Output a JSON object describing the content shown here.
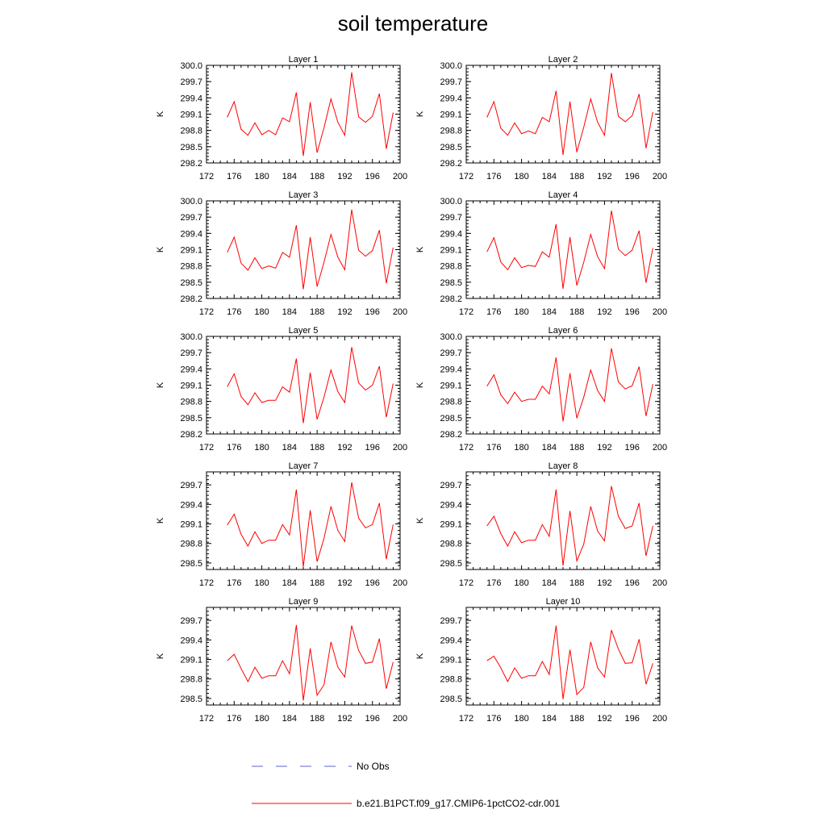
{
  "title": "soil temperature",
  "legend": {
    "no_obs_label": "No Obs",
    "no_obs_color": "#5a66c8",
    "model_label": "b.e21.B1PCT.f09_g17.CMIP6-1pctCO2-cdr.001",
    "model_color": "#ff0000"
  },
  "chart_data": [
    {
      "type": "line",
      "title": "Layer 1",
      "ylabel": "K",
      "xlim": [
        172,
        200
      ],
      "ylim": [
        298.2,
        300.0
      ],
      "xticks": [
        172,
        176,
        180,
        184,
        188,
        192,
        196,
        200
      ],
      "yticks": [
        298.2,
        298.5,
        298.8,
        299.1,
        299.4,
        299.7,
        300.0
      ],
      "x": [
        175,
        176,
        177,
        178,
        179,
        180,
        181,
        182,
        183,
        184,
        185,
        186,
        187,
        188,
        189,
        190,
        191,
        192,
        193,
        194,
        195,
        196,
        197,
        198,
        199
      ],
      "series": [
        {
          "values": [
            299.04,
            299.33,
            298.82,
            298.71,
            298.94,
            298.72,
            298.8,
            298.72,
            299.03,
            298.96,
            299.5,
            298.33,
            299.32,
            298.39,
            298.85,
            299.38,
            298.95,
            298.71,
            299.87,
            299.05,
            298.95,
            299.06,
            299.48,
            298.46,
            299.13
          ]
        }
      ]
    },
    {
      "type": "line",
      "title": "Layer 2",
      "ylabel": "K",
      "xlim": [
        172,
        200
      ],
      "ylim": [
        298.2,
        300.0
      ],
      "xticks": [
        172,
        176,
        180,
        184,
        188,
        192,
        196,
        200
      ],
      "yticks": [
        298.2,
        298.5,
        298.8,
        299.1,
        299.4,
        299.7,
        300.0
      ],
      "x": [
        175,
        176,
        177,
        178,
        179,
        180,
        181,
        182,
        183,
        184,
        185,
        186,
        187,
        188,
        189,
        190,
        191,
        192,
        193,
        194,
        195,
        196,
        197,
        198,
        199
      ],
      "series": [
        {
          "values": [
            299.04,
            299.33,
            298.84,
            298.71,
            298.94,
            298.74,
            298.79,
            298.74,
            299.04,
            298.96,
            299.53,
            298.35,
            299.33,
            298.4,
            298.86,
            299.38,
            298.95,
            298.71,
            299.86,
            299.06,
            298.96,
            299.07,
            299.47,
            298.47,
            299.14
          ]
        }
      ]
    },
    {
      "type": "line",
      "title": "Layer 3",
      "ylabel": "K",
      "xlim": [
        172,
        200
      ],
      "ylim": [
        298.2,
        300.0
      ],
      "xticks": [
        172,
        176,
        180,
        184,
        188,
        192,
        196,
        200
      ],
      "yticks": [
        298.2,
        298.5,
        298.8,
        299.1,
        299.4,
        299.7,
        300.0
      ],
      "x": [
        175,
        176,
        177,
        178,
        179,
        180,
        181,
        182,
        183,
        184,
        185,
        186,
        187,
        188,
        189,
        190,
        191,
        192,
        193,
        194,
        195,
        196,
        197,
        198,
        199
      ],
      "series": [
        {
          "values": [
            299.05,
            299.33,
            298.85,
            298.72,
            298.95,
            298.75,
            298.8,
            298.76,
            299.05,
            298.96,
            299.55,
            298.37,
            299.33,
            298.42,
            298.87,
            299.38,
            298.96,
            298.73,
            299.84,
            299.09,
            298.98,
            299.08,
            299.46,
            298.48,
            299.14
          ]
        }
      ]
    },
    {
      "type": "line",
      "title": "Layer 4",
      "ylabel": "K",
      "xlim": [
        172,
        200
      ],
      "ylim": [
        298.2,
        300.0
      ],
      "xticks": [
        172,
        176,
        180,
        184,
        188,
        192,
        196,
        200
      ],
      "yticks": [
        298.2,
        298.5,
        298.8,
        299.1,
        299.4,
        299.7,
        300.0
      ],
      "x": [
        175,
        176,
        177,
        178,
        179,
        180,
        181,
        182,
        183,
        184,
        185,
        186,
        187,
        188,
        189,
        190,
        191,
        192,
        193,
        194,
        195,
        196,
        197,
        198,
        199
      ],
      "series": [
        {
          "values": [
            299.06,
            299.32,
            298.87,
            298.73,
            298.95,
            298.77,
            298.81,
            298.79,
            299.06,
            298.96,
            299.57,
            298.38,
            299.33,
            298.44,
            298.87,
            299.38,
            298.97,
            298.75,
            299.82,
            299.11,
            298.99,
            299.09,
            299.45,
            298.49,
            299.13
          ]
        }
      ]
    },
    {
      "type": "line",
      "title": "Layer 5",
      "ylabel": "K",
      "xlim": [
        172,
        200
      ],
      "ylim": [
        298.2,
        300.0
      ],
      "xticks": [
        172,
        176,
        180,
        184,
        188,
        192,
        196,
        200
      ],
      "yticks": [
        298.2,
        298.5,
        298.8,
        299.1,
        299.4,
        299.7,
        300.0
      ],
      "x": [
        175,
        176,
        177,
        178,
        179,
        180,
        181,
        182,
        183,
        184,
        185,
        186,
        187,
        188,
        189,
        190,
        191,
        192,
        193,
        194,
        195,
        196,
        197,
        198,
        199
      ],
      "series": [
        {
          "values": [
            299.07,
            299.31,
            298.89,
            298.74,
            298.96,
            298.78,
            298.82,
            298.82,
            299.07,
            298.97,
            299.59,
            298.4,
            299.33,
            298.47,
            298.88,
            299.38,
            298.98,
            298.78,
            299.8,
            299.14,
            299.01,
            299.1,
            299.45,
            298.51,
            299.13
          ]
        }
      ]
    },
    {
      "type": "line",
      "title": "Layer 6",
      "ylabel": "K",
      "xlim": [
        172,
        200
      ],
      "ylim": [
        298.2,
        300.0
      ],
      "xticks": [
        172,
        176,
        180,
        184,
        188,
        192,
        196,
        200
      ],
      "yticks": [
        298.2,
        298.5,
        298.8,
        299.1,
        299.4,
        299.7,
        300.0
      ],
      "x": [
        175,
        176,
        177,
        178,
        179,
        180,
        181,
        182,
        183,
        184,
        185,
        186,
        187,
        188,
        189,
        190,
        191,
        192,
        193,
        194,
        195,
        196,
        197,
        198,
        199
      ],
      "series": [
        {
          "values": [
            299.08,
            299.29,
            298.92,
            298.76,
            298.97,
            298.8,
            298.84,
            298.84,
            299.08,
            298.94,
            299.61,
            298.43,
            299.32,
            298.49,
            298.88,
            299.38,
            299.0,
            298.8,
            299.78,
            299.16,
            299.03,
            299.09,
            299.44,
            298.53,
            299.12
          ]
        }
      ]
    },
    {
      "type": "line",
      "title": "Layer 7",
      "ylabel": "K",
      "xlim": [
        172,
        200
      ],
      "ylim": [
        298.4,
        299.9
      ],
      "xticks": [
        172,
        176,
        180,
        184,
        188,
        192,
        196,
        200
      ],
      "yticks": [
        298.5,
        298.8,
        299.1,
        299.4,
        299.7
      ],
      "x": [
        175,
        176,
        177,
        178,
        179,
        180,
        181,
        182,
        183,
        184,
        185,
        186,
        187,
        188,
        189,
        190,
        191,
        192,
        193,
        194,
        195,
        196,
        197,
        198,
        199
      ],
      "series": [
        {
          "values": [
            299.08,
            299.25,
            298.94,
            298.76,
            298.98,
            298.8,
            298.85,
            298.85,
            299.09,
            298.93,
            299.63,
            298.44,
            299.31,
            298.52,
            298.88,
            299.37,
            299.0,
            298.83,
            299.74,
            299.19,
            299.04,
            299.09,
            299.42,
            298.56,
            299.09
          ]
        }
      ]
    },
    {
      "type": "line",
      "title": "Layer 8",
      "ylabel": "K",
      "xlim": [
        172,
        200
      ],
      "ylim": [
        298.4,
        299.9
      ],
      "xticks": [
        172,
        176,
        180,
        184,
        188,
        192,
        196,
        200
      ],
      "yticks": [
        298.5,
        298.8,
        299.1,
        299.4,
        299.7
      ],
      "x": [
        175,
        176,
        177,
        178,
        179,
        180,
        181,
        182,
        183,
        184,
        185,
        186,
        187,
        188,
        189,
        190,
        191,
        192,
        193,
        194,
        195,
        196,
        197,
        198,
        199
      ],
      "series": [
        {
          "values": [
            299.07,
            299.22,
            298.95,
            298.76,
            298.98,
            298.81,
            298.85,
            298.85,
            299.09,
            298.91,
            299.63,
            298.46,
            299.3,
            298.53,
            298.79,
            299.37,
            298.99,
            298.84,
            299.68,
            299.22,
            299.03,
            299.07,
            299.42,
            298.61,
            299.07
          ]
        }
      ]
    },
    {
      "type": "line",
      "title": "Layer 9",
      "ylabel": "K",
      "xlim": [
        172,
        200
      ],
      "ylim": [
        298.4,
        299.9
      ],
      "xticks": [
        172,
        176,
        180,
        184,
        188,
        192,
        196,
        200
      ],
      "yticks": [
        298.5,
        298.8,
        299.1,
        299.4,
        299.7
      ],
      "x": [
        175,
        176,
        177,
        178,
        179,
        180,
        181,
        182,
        183,
        184,
        185,
        186,
        187,
        188,
        189,
        190,
        191,
        192,
        193,
        194,
        195,
        196,
        197,
        198,
        199
      ],
      "series": [
        {
          "values": [
            299.08,
            299.18,
            298.96,
            298.76,
            298.98,
            298.81,
            298.85,
            298.85,
            299.08,
            298.88,
            299.63,
            298.47,
            299.27,
            298.55,
            298.71,
            299.37,
            298.98,
            298.83,
            299.62,
            299.24,
            299.04,
            299.06,
            299.42,
            298.65,
            299.06
          ]
        }
      ]
    },
    {
      "type": "line",
      "title": "Layer 10",
      "ylabel": "K",
      "xlim": [
        172,
        200
      ],
      "ylim": [
        298.4,
        299.9
      ],
      "xticks": [
        172,
        176,
        180,
        184,
        188,
        192,
        196,
        200
      ],
      "yticks": [
        298.5,
        298.8,
        299.1,
        299.4,
        299.7
      ],
      "x": [
        175,
        176,
        177,
        178,
        179,
        180,
        181,
        182,
        183,
        184,
        185,
        186,
        187,
        188,
        189,
        190,
        191,
        192,
        193,
        194,
        195,
        196,
        197,
        198,
        199
      ],
      "series": [
        {
          "values": [
            299.08,
            299.15,
            298.97,
            298.76,
            298.97,
            298.81,
            298.85,
            298.85,
            299.07,
            298.87,
            299.62,
            298.49,
            299.25,
            298.56,
            298.67,
            299.37,
            298.97,
            298.83,
            299.55,
            299.26,
            299.04,
            299.05,
            299.41,
            298.72,
            299.04
          ]
        }
      ]
    }
  ]
}
